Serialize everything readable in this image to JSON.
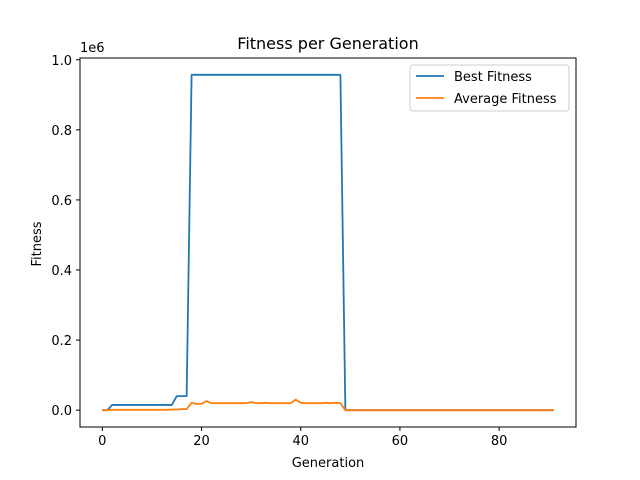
{
  "chart_data": {
    "type": "line",
    "title": "Fitness per Generation",
    "xlabel": "Generation",
    "ylabel": "Fitness",
    "offset_text": "1e6",
    "xlim": [
      -4.5,
      95.5
    ],
    "ylim": [
      -0.048,
      1.005
    ],
    "xticks": [
      0,
      20,
      40,
      60,
      80
    ],
    "yticks": [
      0.0,
      0.2,
      0.4,
      0.6,
      0.8,
      1.0
    ],
    "ytick_labels": [
      "0.0",
      "0.2",
      "0.4",
      "0.6",
      "0.8",
      "1.0"
    ],
    "grid": false,
    "legend_position": "upper right",
    "series": [
      {
        "name": "Best Fitness",
        "color": "#1f77b4",
        "x": [
          0,
          1,
          2,
          3,
          4,
          5,
          6,
          7,
          8,
          9,
          10,
          11,
          12,
          13,
          14,
          15,
          16,
          17,
          18,
          19,
          20,
          21,
          22,
          23,
          24,
          25,
          26,
          27,
          28,
          29,
          30,
          31,
          32,
          33,
          34,
          35,
          36,
          37,
          38,
          39,
          40,
          41,
          42,
          43,
          44,
          45,
          46,
          47,
          48,
          49,
          50,
          51,
          52,
          53,
          54,
          55,
          56,
          57,
          58,
          59,
          60,
          61,
          62,
          63,
          64,
          65,
          66,
          67,
          68,
          69,
          70,
          71,
          72,
          73,
          74,
          75,
          76,
          77,
          78,
          79,
          80,
          81,
          82,
          83,
          84,
          85,
          86,
          87,
          88,
          89,
          90,
          91
        ],
        "y": [
          0.0,
          0.0,
          0.015,
          0.015,
          0.015,
          0.015,
          0.015,
          0.015,
          0.015,
          0.015,
          0.015,
          0.015,
          0.015,
          0.015,
          0.015,
          0.04,
          0.04,
          0.04,
          0.957,
          0.957,
          0.957,
          0.957,
          0.957,
          0.957,
          0.957,
          0.957,
          0.957,
          0.957,
          0.957,
          0.957,
          0.957,
          0.957,
          0.957,
          0.957,
          0.957,
          0.957,
          0.957,
          0.957,
          0.957,
          0.957,
          0.957,
          0.957,
          0.957,
          0.957,
          0.957,
          0.957,
          0.957,
          0.957,
          0.957,
          0.0,
          0.0,
          0.0,
          0.0,
          0.0,
          0.0,
          0.0,
          0.0,
          0.0,
          0.0,
          0.0,
          0.0,
          0.0,
          0.0,
          0.0,
          0.0,
          0.0,
          0.0,
          0.0,
          0.0,
          0.0,
          0.0,
          0.0,
          0.0,
          0.0,
          0.0,
          0.0,
          0.0,
          0.0,
          0.0,
          0.0,
          0.0,
          0.0,
          0.0,
          0.0,
          0.0,
          0.0,
          0.0,
          0.0,
          0.0,
          0.0,
          0.0,
          0.0
        ]
      },
      {
        "name": "Average Fitness",
        "color": "#ff7f0e",
        "x": [
          0,
          1,
          2,
          3,
          4,
          5,
          6,
          7,
          8,
          9,
          10,
          11,
          12,
          13,
          14,
          15,
          16,
          17,
          18,
          19,
          20,
          21,
          22,
          23,
          24,
          25,
          26,
          27,
          28,
          29,
          30,
          31,
          32,
          33,
          34,
          35,
          36,
          37,
          38,
          39,
          40,
          41,
          42,
          43,
          44,
          45,
          46,
          47,
          48,
          49,
          50,
          51,
          52,
          53,
          54,
          55,
          56,
          57,
          58,
          59,
          60,
          61,
          62,
          63,
          64,
          65,
          66,
          67,
          68,
          69,
          70,
          71,
          72,
          73,
          74,
          75,
          76,
          77,
          78,
          79,
          80,
          81,
          82,
          83,
          84,
          85,
          86,
          87,
          88,
          89,
          90,
          91
        ],
        "y": [
          0.0,
          0.0,
          0.001,
          0.001,
          0.001,
          0.001,
          0.001,
          0.001,
          0.001,
          0.001,
          0.001,
          0.001,
          0.001,
          0.001,
          0.002,
          0.002,
          0.003,
          0.003,
          0.021,
          0.018,
          0.018,
          0.026,
          0.02,
          0.02,
          0.02,
          0.02,
          0.02,
          0.02,
          0.02,
          0.02,
          0.023,
          0.02,
          0.02,
          0.021,
          0.02,
          0.02,
          0.02,
          0.02,
          0.02,
          0.03,
          0.021,
          0.02,
          0.02,
          0.02,
          0.02,
          0.021,
          0.02,
          0.021,
          0.02,
          0.0,
          0.0,
          0.0,
          0.0,
          0.0,
          0.0,
          0.0,
          0.0,
          0.0,
          0.0,
          0.0,
          0.0,
          0.0,
          0.0,
          0.0,
          0.0,
          0.0,
          0.0,
          0.0,
          0.0,
          0.0,
          0.0,
          0.0,
          0.0,
          0.0,
          0.0,
          0.0,
          0.0,
          0.0,
          0.0,
          0.0,
          0.0,
          0.0,
          0.0,
          0.0,
          0.0,
          0.0,
          0.0,
          0.0,
          0.0,
          0.0,
          0.0,
          0.0
        ]
      }
    ]
  }
}
